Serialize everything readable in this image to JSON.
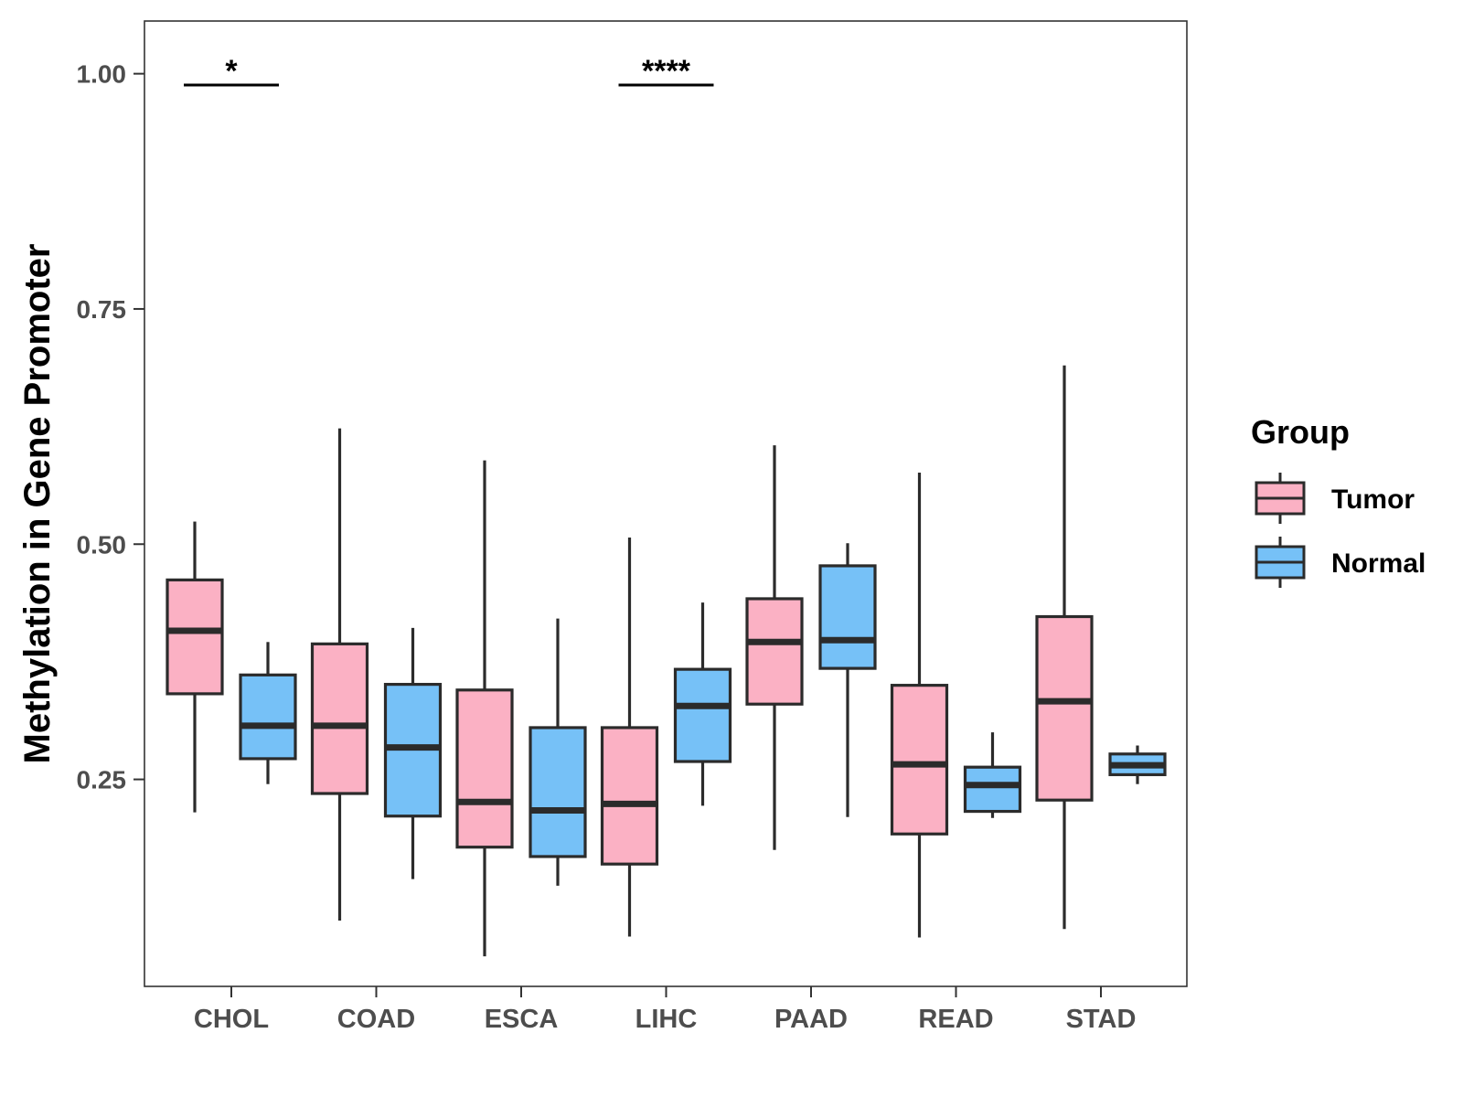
{
  "chart_data": {
    "type": "boxplot",
    "title": "",
    "xlabel": "",
    "ylabel": "Methylation in Gene Promoter",
    "ylim": [
      0.03,
      1.056
    ],
    "y_ticks": [
      0.25,
      0.5,
      0.75,
      1.0
    ],
    "y_tick_labels": [
      "0.25",
      "0.50",
      "0.75",
      "1.00"
    ],
    "grid": false,
    "categories": [
      "CHOL",
      "COAD",
      "ESCA",
      "LIHC",
      "PAAD",
      "READ",
      "STAD"
    ],
    "legend": {
      "title": "Group",
      "position": "right",
      "entries": [
        {
          "name": "Tumor",
          "color": "#FBB1C4"
        },
        {
          "name": "Normal",
          "color": "#76C1F7"
        }
      ]
    },
    "series": [
      {
        "name": "Tumor",
        "color": "#FBB1C4",
        "boxes": [
          {
            "category": "CHOL",
            "min": 0.215,
            "q1": 0.341,
            "median": 0.408,
            "q3": 0.462,
            "max": 0.524
          },
          {
            "category": "COAD",
            "min": 0.1,
            "q1": 0.235,
            "median": 0.307,
            "q3": 0.394,
            "max": 0.623
          },
          {
            "category": "ESCA",
            "min": 0.062,
            "q1": 0.178,
            "median": 0.226,
            "q3": 0.345,
            "max": 0.589
          },
          {
            "category": "LIHC",
            "min": 0.083,
            "q1": 0.16,
            "median": 0.224,
            "q3": 0.305,
            "max": 0.507
          },
          {
            "category": "PAAD",
            "min": 0.175,
            "q1": 0.33,
            "median": 0.396,
            "q3": 0.442,
            "max": 0.605
          },
          {
            "category": "READ",
            "min": 0.082,
            "q1": 0.192,
            "median": 0.266,
            "q3": 0.35,
            "max": 0.576
          },
          {
            "category": "STAD",
            "min": 0.091,
            "q1": 0.228,
            "median": 0.333,
            "q3": 0.423,
            "max": 0.69
          }
        ]
      },
      {
        "name": "Normal",
        "color": "#76C1F7",
        "boxes": [
          {
            "category": "CHOL",
            "min": 0.245,
            "q1": 0.272,
            "median": 0.307,
            "q3": 0.361,
            "max": 0.396
          },
          {
            "category": "COAD",
            "min": 0.144,
            "q1": 0.211,
            "median": 0.284,
            "q3": 0.351,
            "max": 0.411
          },
          {
            "category": "ESCA",
            "min": 0.137,
            "q1": 0.168,
            "median": 0.217,
            "q3": 0.305,
            "max": 0.421
          },
          {
            "category": "LIHC",
            "min": 0.222,
            "q1": 0.269,
            "median": 0.328,
            "q3": 0.367,
            "max": 0.438
          },
          {
            "category": "PAAD",
            "min": 0.21,
            "q1": 0.368,
            "median": 0.398,
            "q3": 0.477,
            "max": 0.501
          },
          {
            "category": "READ",
            "min": 0.209,
            "q1": 0.216,
            "median": 0.244,
            "q3": 0.263,
            "max": 0.3
          },
          {
            "category": "STAD",
            "min": 0.245,
            "q1": 0.255,
            "median": 0.265,
            "q3": 0.277,
            "max": 0.286
          }
        ]
      }
    ],
    "annotations": [
      {
        "category": "CHOL",
        "label": "*",
        "y": 0.988
      },
      {
        "category": "LIHC",
        "label": "****",
        "y": 0.988
      }
    ]
  }
}
